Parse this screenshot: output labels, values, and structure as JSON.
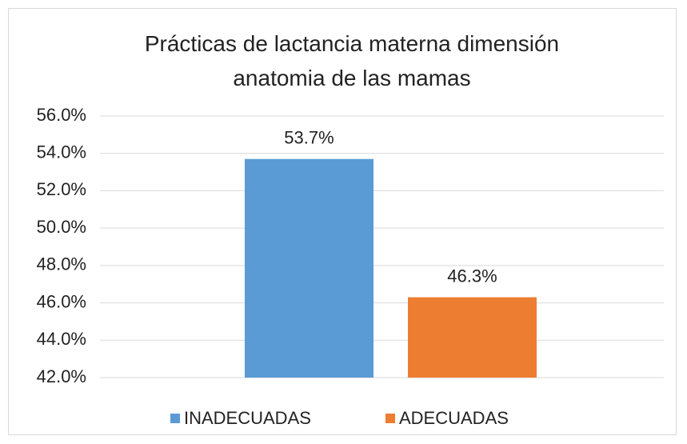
{
  "chart_data": {
    "type": "bar",
    "title": "Prácticas de lactancia materna dimensión anatomia de las mamas",
    "categories": [
      null
    ],
    "series": [
      {
        "name": "INADECUADAS",
        "color": "#5b9bd5",
        "values": [
          53.7
        ],
        "value_labels": [
          "53.7%"
        ]
      },
      {
        "name": "ADECUADAS",
        "color": "#ed7d31",
        "values": [
          46.3
        ],
        "value_labels": [
          "46.3%"
        ]
      }
    ],
    "ylim": [
      42,
      56
    ],
    "yticks": [
      {
        "value": 42,
        "label": "42.0%"
      },
      {
        "value": 44,
        "label": "44.0%"
      },
      {
        "value": 46,
        "label": "46.0%"
      },
      {
        "value": 48,
        "label": "48.0%"
      },
      {
        "value": 50,
        "label": "50.0%"
      },
      {
        "value": 52,
        "label": "52.0%"
      },
      {
        "value": 54,
        "label": "54.0%"
      },
      {
        "value": 56,
        "label": "56.0%"
      }
    ],
    "grid": true,
    "legend": "bottom"
  }
}
